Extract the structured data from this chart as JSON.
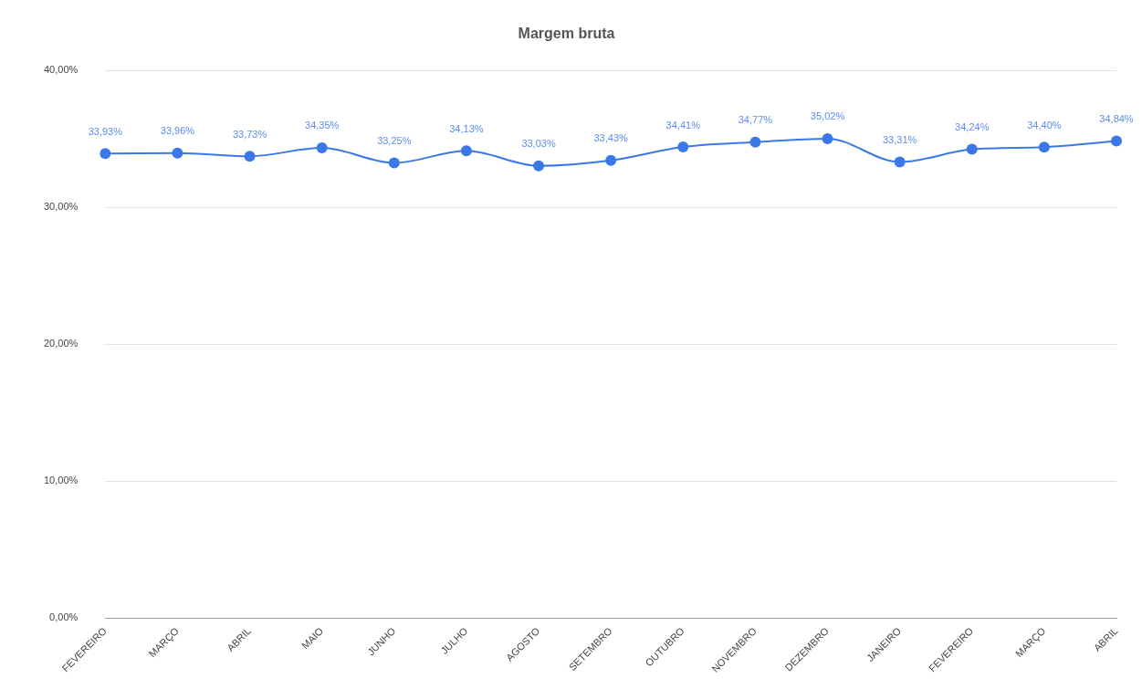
{
  "chart_data": {
    "type": "line",
    "title": "Margem bruta",
    "categories": [
      "FEVEREIRO",
      "MARÇO",
      "ABRIL",
      "MAIO",
      "JUNHO",
      "JULHO",
      "AGOSTO",
      "SETEMBRO",
      "OUTUBRO",
      "NOVEMBRO",
      "DEZEMBRO",
      "JANEIRO",
      "FEVEREIRO",
      "MARÇO",
      "ABRIL"
    ],
    "series": [
      {
        "color": "#3b78e7",
        "values": [
          33.93,
          33.96,
          33.73,
          34.35,
          33.25,
          34.13,
          33.03,
          33.43,
          34.41,
          34.77,
          35.02,
          33.31,
          34.24,
          34.4,
          34.84
        ],
        "value_labels": [
          "33,93%",
          "33,96%",
          "33,73%",
          "34,35%",
          "33,25%",
          "34,13%",
          "33,03%",
          "33,43%",
          "34,41%",
          "34,77%",
          "35,02%",
          "33,31%",
          "34,24%",
          "34,40%",
          "34,84%"
        ]
      }
    ],
    "ylim": [
      0,
      40
    ],
    "yticks": [
      {
        "value": 0,
        "label": "0,00%"
      },
      {
        "value": 10,
        "label": "10,00%"
      },
      {
        "value": 20,
        "label": "20,00%"
      },
      {
        "value": 30,
        "label": "30,00%"
      },
      {
        "value": 40,
        "label": "40,00%"
      }
    ],
    "grid": "y",
    "marker": "circle",
    "line_style": "solid",
    "legend": false
  }
}
